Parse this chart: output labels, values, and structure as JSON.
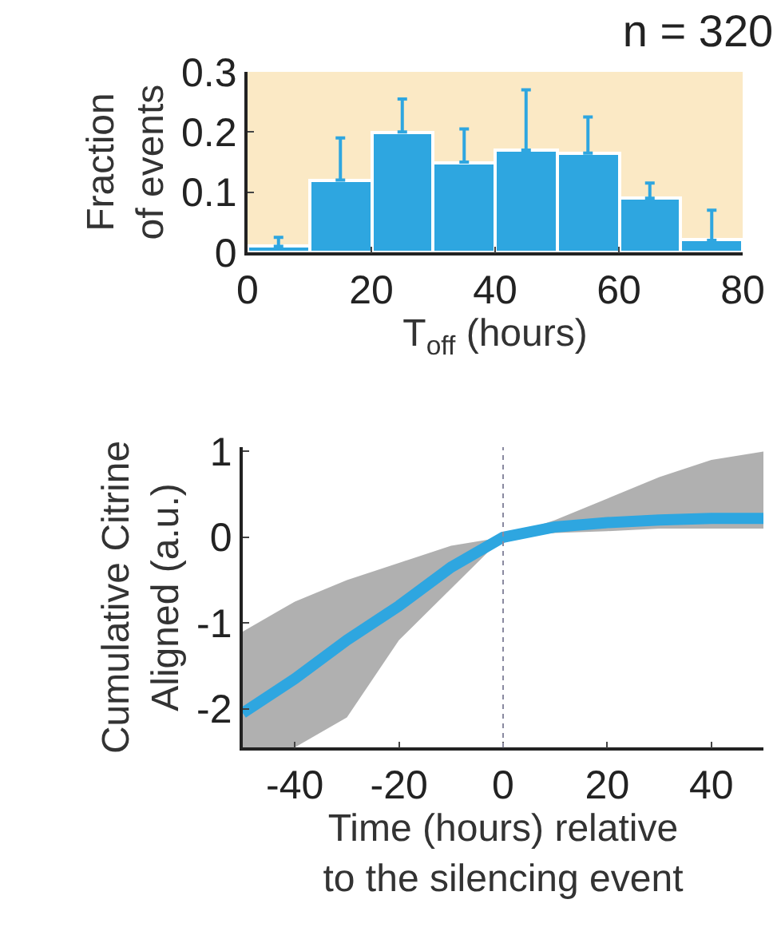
{
  "chart_data": [
    {
      "type": "histogram",
      "title": "n = 320",
      "xlabel": "T$_{off}$ (hours)",
      "ylabel": "Fraction\nof events",
      "bins": [
        0,
        10,
        20,
        30,
        40,
        50,
        60,
        70,
        80
      ],
      "values": [
        0.01,
        0.12,
        0.2,
        0.15,
        0.17,
        0.165,
        0.09,
        0.02
      ],
      "errors": [
        [
          0.01,
          0.025
        ],
        [
          0.12,
          0.19
        ],
        [
          0.2,
          0.255
        ],
        [
          0.15,
          0.205
        ],
        [
          0.17,
          0.27
        ],
        [
          0.165,
          0.225
        ],
        [
          0.09,
          0.115
        ],
        [
          0.02,
          0.07
        ]
      ],
      "color": "#2ea6e0",
      "xlim": [
        0,
        80
      ],
      "xticks": [
        0,
        20,
        40,
        60,
        80
      ],
      "ylim": [
        0,
        0.3
      ],
      "yticks": [
        0,
        0.1,
        0.2,
        0.3
      ],
      "grid": false
    },
    {
      "type": "line",
      "xlabel": "Time (hours) relative\nto the silencing event",
      "ylabel": "Cumulative Citrine\nAligned (a.u.)",
      "x": [
        -50,
        -40,
        -30,
        -20,
        -10,
        0,
        10,
        20,
        30,
        40,
        50
      ],
      "series": [
        {
          "color": "#2ea6e0",
          "values": [
            -2.05,
            -1.65,
            -1.2,
            -0.8,
            -0.35,
            0,
            0.12,
            0.17,
            0.2,
            0.22,
            0.22
          ],
          "lower": [
            -2.45,
            -2.45,
            -2.1,
            -1.2,
            -0.6,
            0,
            0.05,
            0.07,
            0.1,
            0.1,
            0.1
          ],
          "upper": [
            -1.1,
            -0.75,
            -0.5,
            -0.3,
            -0.1,
            0,
            0.2,
            0.45,
            0.7,
            0.9,
            1.0
          ]
        }
      ],
      "ref_lines": [
        {
          "axis": "x",
          "value": 0,
          "color": "#8a8aa0",
          "line_style": "dotted"
        }
      ],
      "xlim": [
        -50,
        50
      ],
      "xticks": [
        -40,
        -20,
        0,
        20,
        40
      ],
      "ylim": [
        -2.45,
        1.05
      ],
      "yticks": [
        -2,
        -1,
        0,
        1
      ],
      "grid": false,
      "line_style": "solid"
    }
  ]
}
